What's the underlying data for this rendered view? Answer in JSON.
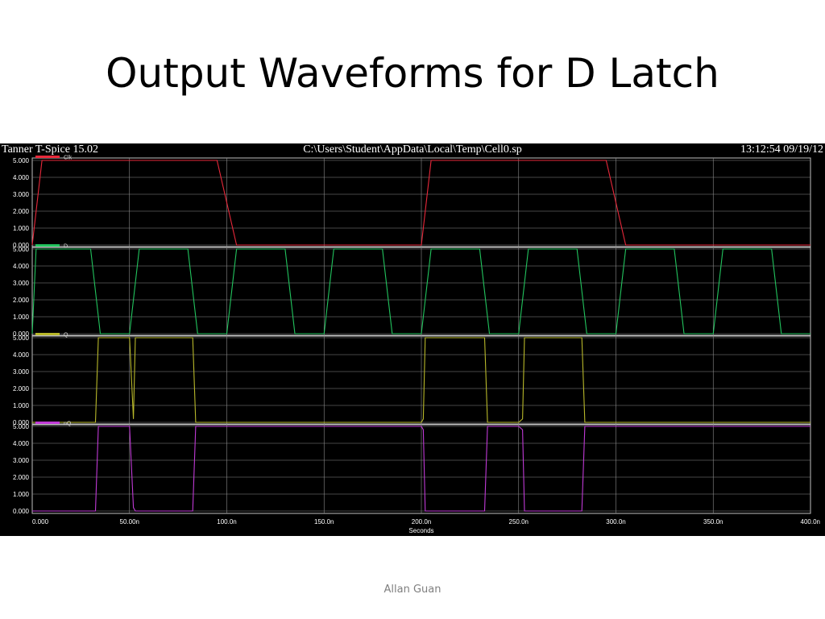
{
  "slide": {
    "title": "Output Waveforms for D Latch",
    "author": "Allan Guan"
  },
  "window": {
    "app_title": "Tanner T-Spice 15.02",
    "file_path": "C:\\Users\\Student\\AppData\\Local\\Temp\\Cell0.sp",
    "timestamp": "13:12:54 09/19/12"
  },
  "chart_data": {
    "type": "line",
    "xlabel": "Seconds",
    "xlim": [
      0,
      400
    ],
    "x_ticks": [
      "0.000",
      "50.00n",
      "100.0n",
      "150.0n",
      "200.0n",
      "250.0n",
      "300.0n",
      "350.0n",
      "400.0n"
    ],
    "y_ticks": [
      "0.000",
      "1.000",
      "2.000",
      "3.000",
      "4.000",
      "5.000"
    ],
    "ylim": [
      0,
      5
    ],
    "grid": true,
    "legend": "top-left of each panel",
    "series": [
      {
        "name": "Clk",
        "color": "#e8283a",
        "x": [
          0,
          5,
          95,
          105,
          200,
          205,
          295,
          305,
          400
        ],
        "y": [
          0,
          5,
          5,
          0,
          0,
          5,
          5,
          0,
          0
        ]
      },
      {
        "name": "D",
        "color": "#22c45e",
        "x": [
          0,
          2,
          30,
          35,
          50,
          55,
          80,
          85,
          100,
          105,
          130,
          135,
          150,
          155,
          180,
          185,
          200,
          205,
          230,
          235,
          250,
          255,
          280,
          285,
          300,
          305,
          330,
          335,
          350,
          355,
          380,
          385,
          400
        ],
        "y": [
          0,
          5,
          5,
          0,
          0,
          5,
          5,
          0,
          0,
          5,
          5,
          0,
          0,
          5,
          5,
          0,
          0,
          5,
          5,
          0,
          0,
          5,
          5,
          0,
          0,
          5,
          5,
          0,
          0,
          5,
          5,
          0,
          0
        ]
      },
      {
        "name": "Q",
        "color": "#b8b82a",
        "x": [
          0,
          32.5,
          34,
          50,
          52,
          53,
          82.5,
          84,
          200,
          201,
          202,
          232.5,
          234,
          250,
          252,
          253,
          282.5,
          284,
          400
        ],
        "y": [
          0,
          0,
          5,
          5,
          0.2,
          5,
          5,
          0,
          0,
          0.2,
          5,
          5,
          0,
          0,
          0.2,
          5,
          5,
          0,
          0
        ]
      },
      {
        "name": "nQ",
        "color": "#c03ad6",
        "x": [
          0,
          32.5,
          34,
          50,
          52,
          53,
          82.5,
          84,
          200,
          201,
          202,
          232.5,
          234,
          250,
          252,
          253,
          282.5,
          284,
          400
        ],
        "y": [
          0,
          0,
          5,
          5,
          0.2,
          0,
          0,
          5,
          5,
          4.8,
          0,
          0,
          5,
          5,
          4.8,
          0,
          0,
          5,
          5
        ]
      }
    ]
  }
}
